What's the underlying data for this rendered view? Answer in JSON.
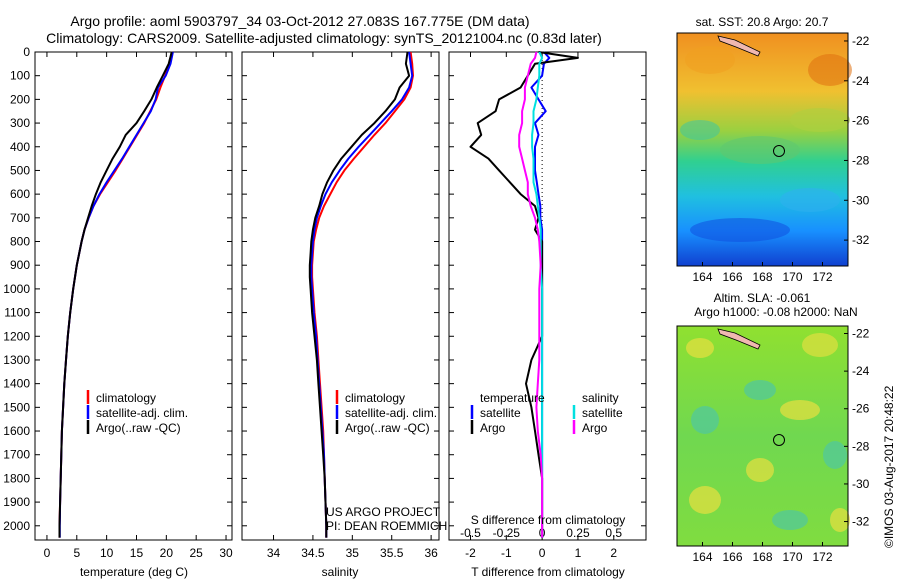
{
  "header": {
    "title_line1": "Argo profile: aoml 5903797_34 03-Oct-2012 27.083S 167.775E (DM data)",
    "title_line2": "Climatology: CARS2009. Satellite-adjusted climatology: synTS_20121004.nc (0.83d later)"
  },
  "colors": {
    "climatology": "#ff0000",
    "satellite": "#0000ff",
    "argo": "#000000",
    "sal_satellite": "#00e0e0",
    "sal_argo": "#ff00ff"
  },
  "chart_data": [
    {
      "id": "temperature",
      "type": "line",
      "xlabel": "temperature (deg C)",
      "xlim": [
        -2,
        31
      ],
      "xticks": [
        0,
        5,
        10,
        15,
        20,
        25,
        30
      ],
      "ylim": [
        2060,
        0
      ],
      "yticks": [
        0,
        100,
        200,
        300,
        400,
        500,
        600,
        700,
        800,
        900,
        1000,
        1100,
        1200,
        1300,
        1400,
        1500,
        1600,
        1700,
        1800,
        1900,
        2000
      ],
      "depth": [
        0,
        50,
        100,
        150,
        200,
        250,
        300,
        350,
        400,
        450,
        500,
        550,
        600,
        650,
        700,
        750,
        800,
        900,
        1000,
        1100,
        1200,
        1300,
        1400,
        1500,
        1600,
        1700,
        1800,
        1900,
        2000,
        2050
      ],
      "legend": [
        "climatology",
        "satellite-adj. clim.",
        "Argo(..raw -QC)"
      ],
      "series": [
        {
          "name": "climatology",
          "values": [
            21.0,
            20.6,
            19.8,
            19.0,
            18.3,
            17.3,
            16.3,
            15.1,
            13.9,
            12.7,
            11.5,
            10.2,
            8.9,
            7.8,
            7.0,
            6.3,
            5.8,
            5.0,
            4.4,
            3.9,
            3.5,
            3.2,
            2.9,
            2.7,
            2.5,
            2.4,
            2.3,
            2.2,
            2.1,
            2.1
          ]
        },
        {
          "name": "satellite-adj. clim.",
          "values": [
            21.1,
            20.7,
            19.9,
            18.6,
            18.2,
            17.4,
            16.2,
            15.0,
            13.8,
            12.6,
            11.3,
            10.0,
            8.8,
            7.8,
            7.0,
            6.3,
            5.8,
            5.0,
            4.4,
            3.9,
            3.5,
            3.2,
            2.9,
            2.7,
            2.5,
            2.4,
            2.3,
            2.2,
            2.15,
            2.15
          ]
        },
        {
          "name": "Argo(..raw -QC)",
          "values": [
            20.9,
            20.4,
            19.4,
            18.4,
            17.5,
            16.3,
            15.0,
            13.2,
            12.2,
            11.0,
            10.0,
            9.0,
            8.2,
            7.5,
            6.9,
            6.3,
            5.8,
            5.0,
            4.4,
            3.9,
            3.5,
            3.2,
            2.9,
            2.7,
            2.5,
            2.4,
            2.3,
            2.2,
            2.1,
            2.1
          ]
        }
      ]
    },
    {
      "id": "salinity",
      "type": "line",
      "xlabel": "salinity",
      "xlim": [
        33.6,
        36.1
      ],
      "xticks": [
        34,
        34.5,
        35,
        35.5,
        36
      ],
      "ylim": [
        2060,
        0
      ],
      "depth": [
        0,
        50,
        100,
        150,
        200,
        250,
        300,
        350,
        400,
        450,
        500,
        550,
        600,
        650,
        700,
        750,
        800,
        850,
        900,
        950,
        1000,
        1100,
        1200,
        1300,
        1400,
        1500,
        1600,
        1700,
        1800,
        1900,
        2000,
        2050
      ],
      "legend": [
        "climatology",
        "satellite-adj. clim.",
        "Argo(..raw -QC)"
      ],
      "annotation": [
        "US ARGO PROJECT",
        "PI: DEAN ROEMMICH"
      ],
      "series": [
        {
          "name": "climatology",
          "values": [
            35.74,
            35.76,
            35.77,
            35.74,
            35.66,
            35.54,
            35.42,
            35.28,
            35.15,
            35.02,
            34.9,
            34.8,
            34.72,
            34.64,
            34.58,
            34.54,
            34.51,
            34.5,
            34.49,
            34.49,
            34.5,
            34.52,
            34.55,
            34.57,
            34.59,
            34.61,
            34.63,
            34.64,
            34.65,
            34.66,
            34.67,
            34.67
          ]
        },
        {
          "name": "satellite-adj. clim.",
          "values": [
            35.72,
            35.74,
            35.76,
            35.72,
            35.63,
            35.5,
            35.36,
            35.22,
            35.08,
            34.95,
            34.84,
            34.74,
            34.66,
            34.6,
            34.55,
            34.52,
            34.5,
            34.49,
            34.48,
            34.48,
            34.49,
            34.51,
            34.54,
            34.56,
            34.58,
            34.6,
            34.62,
            34.64,
            34.65,
            34.66,
            34.67,
            34.67
          ]
        },
        {
          "name": "Argo(..raw -QC)",
          "values": [
            35.7,
            35.68,
            35.72,
            35.6,
            35.54,
            35.42,
            35.28,
            35.12,
            34.99,
            34.86,
            34.76,
            34.68,
            34.62,
            34.58,
            34.53,
            34.5,
            34.48,
            34.47,
            34.46,
            34.46,
            34.47,
            34.49,
            34.52,
            34.55,
            34.57,
            34.59,
            34.61,
            34.63,
            34.65,
            34.66,
            34.67,
            34.67
          ]
        }
      ]
    },
    {
      "id": "difference",
      "type": "line",
      "xlabel": "T difference from climatology",
      "xlabel2": "S difference from climatology",
      "xlim": [
        -2.6,
        2.9
      ],
      "xticks": [
        -2,
        -1,
        0,
        1,
        2
      ],
      "top_tick_labels": [
        "-0.5",
        "-0.25",
        "0",
        "0.25",
        "0.5"
      ],
      "top_tick_values": [
        -0.5,
        -0.25,
        0,
        0.25,
        0.5
      ],
      "ylim": [
        2060,
        0
      ],
      "depth": [
        0,
        25,
        50,
        100,
        150,
        200,
        250,
        300,
        350,
        400,
        450,
        500,
        550,
        600,
        650,
        700,
        750,
        800,
        900,
        1000,
        1100,
        1200,
        1300,
        1400,
        1500,
        1600,
        1700,
        1800,
        1900,
        2000,
        2050
      ],
      "legend_left": [
        "temperature",
        "satellite",
        "Argo"
      ],
      "legend_right": [
        "salinity",
        "satellite",
        "Argo"
      ],
      "series": [
        {
          "name": "T satellite",
          "values": [
            0.05,
            0.2,
            0.05,
            0.0,
            -0.3,
            -0.1,
            0.1,
            -0.2,
            -0.1,
            -0.2,
            -0.2,
            -0.2,
            -0.15,
            -0.1,
            -0.05,
            -0.05,
            0.0,
            0.0,
            0.0,
            0.0,
            0.0,
            0.0,
            0.0,
            0.0,
            0.0,
            0.0,
            0.0,
            0.0,
            0.0,
            0.0,
            0.0
          ]
        },
        {
          "name": "T Argo",
          "values": [
            -0.1,
            1.0,
            -0.2,
            -0.4,
            -0.6,
            -1.2,
            -1.3,
            -1.8,
            -1.7,
            -2.0,
            -1.5,
            -1.2,
            -0.9,
            -0.6,
            -0.2,
            -0.1,
            -0.2,
            0.0,
            0.0,
            0.0,
            0.0,
            0.0,
            -0.3,
            -0.45,
            -0.3,
            -0.2,
            -0.1,
            0.0,
            0.0,
            0.0,
            0.0
          ]
        },
        {
          "name": "S satellite",
          "values": [
            -0.02,
            0.0,
            -0.02,
            -0.02,
            -0.03,
            -0.04,
            -0.06,
            -0.06,
            -0.07,
            -0.07,
            -0.06,
            -0.06,
            -0.06,
            -0.04,
            -0.03,
            -0.02,
            -0.01,
            -0.01,
            -0.01,
            0.0,
            0.0,
            0.0,
            0.0,
            0.0,
            0.0,
            0.0,
            0.0,
            0.0,
            0.0,
            0.0,
            0.0
          ]
        },
        {
          "name": "S Argo",
          "values": [
            -0.04,
            -0.05,
            -0.08,
            -0.1,
            -0.12,
            -0.12,
            -0.14,
            -0.14,
            -0.16,
            -0.16,
            -0.14,
            -0.12,
            -0.1,
            -0.1,
            -0.08,
            -0.05,
            -0.03,
            -0.02,
            -0.01,
            -0.02,
            -0.02,
            -0.02,
            -0.02,
            -0.03,
            -0.04,
            -0.03,
            -0.01,
            0.0,
            0.0,
            0.0,
            0.0
          ]
        }
      ]
    }
  ],
  "maps": {
    "sst": {
      "title": "sat. SST: 20.8 Argo: 20.7",
      "lon_ticks": [
        "164",
        "166",
        "168",
        "170",
        "172"
      ],
      "lat_ticks": [
        "-22",
        "-24",
        "-26",
        "-28",
        "-30",
        "-32"
      ]
    },
    "sla": {
      "title_line1": "Altim. SLA: -0.061",
      "title_line2": "Argo h1000: -0.08 h2000: NaN",
      "lon_ticks": [
        "164",
        "166",
        "168",
        "170",
        "172"
      ],
      "lat_ticks": [
        "-22",
        "-24",
        "-26",
        "-28",
        "-30",
        "-32"
      ]
    }
  },
  "footer": {
    "credit": "©IMOS 03-Aug-2017 20:48:22"
  }
}
